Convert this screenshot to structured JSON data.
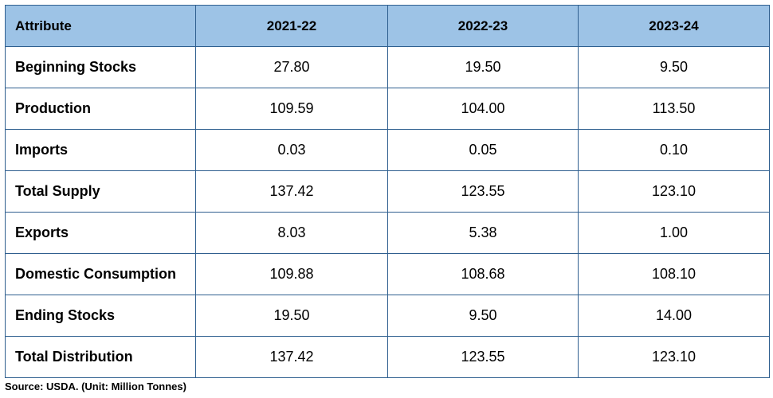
{
  "table": {
    "header": [
      "Attribute",
      "2021-22",
      "2022-23",
      "2023-24"
    ],
    "rows": [
      [
        "Beginning Stocks",
        "27.80",
        "19.50",
        "9.50"
      ],
      [
        "Production",
        "109.59",
        "104.00",
        "113.50"
      ],
      [
        "Imports",
        "0.03",
        "0.05",
        "0.10"
      ],
      [
        "Total Supply",
        "137.42",
        "123.55",
        "123.10"
      ],
      [
        "Exports",
        "8.03",
        "5.38",
        "1.00"
      ],
      [
        "Domestic Consumption",
        "109.88",
        "108.68",
        "108.10"
      ],
      [
        "Ending Stocks",
        "19.50",
        "9.50",
        "14.00"
      ],
      [
        "Total Distribution",
        "137.42",
        "123.55",
        "123.10"
      ]
    ]
  },
  "source": "Source: USDA. (Unit: Million Tonnes)"
}
